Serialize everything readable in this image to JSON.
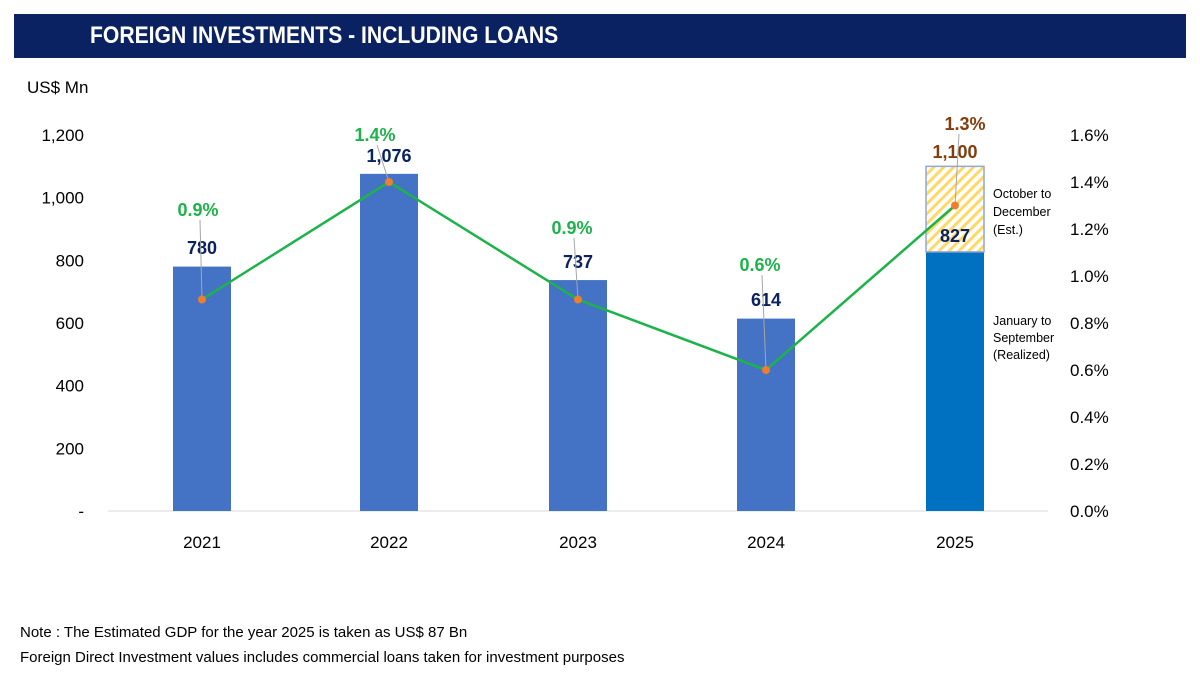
{
  "title": "FOREIGN INVESTMENTS - INCLUDING LOANS",
  "notes": [
    "Note : The Estimated GDP for the year 2025 is taken as US$ 87  Bn",
    "Foreign Direct Investment values includes commercial loans taken for investment purposes"
  ],
  "chart_data": {
    "type": "bar",
    "categories": [
      "2021",
      "2022",
      "2023",
      "2024",
      "2025"
    ],
    "ylabel": "US$ Mn",
    "ylim": [
      0,
      1200
    ],
    "y_ticks": [
      "-",
      "200",
      "400",
      "600",
      "800",
      "1,000",
      "1,200"
    ],
    "y2lim": [
      0,
      1.6
    ],
    "y2_ticks": [
      "0.0%",
      "0.2%",
      "0.4%",
      "0.6%",
      "0.8%",
      "1.0%",
      "1.2%",
      "1.4%",
      "1.6%"
    ],
    "grid": false,
    "series": [
      {
        "type": "bar",
        "values": [
          780,
          1076,
          737,
          614,
          827
        ],
        "labels": [
          "780",
          "1,076",
          "737",
          "614",
          "827"
        ]
      },
      {
        "type": "bar-stacked-estimate",
        "values": [
          null,
          null,
          null,
          null,
          273
        ],
        "total_label": "1,100",
        "total": 1100
      },
      {
        "type": "line",
        "axis": "right",
        "values": [
          0.9,
          1.4,
          0.9,
          0.6,
          1.3
        ],
        "labels": [
          "0.9%",
          "1.4%",
          "0.9%",
          "0.6%",
          "1.3%"
        ]
      }
    ],
    "annotations": {
      "estimate": [
        "October to",
        "December",
        "(Est.)"
      ],
      "realized": [
        "January to",
        "September",
        "(Realized)"
      ]
    },
    "colors": {
      "bar": "#4472c4",
      "bar_2025": "#0070c0",
      "estimate_hatch": "#ffd966",
      "line": "#1db34a",
      "marker": "#ed7d31",
      "pct_label": "#1db34a",
      "pct_label_2025": "#843c0c",
      "value_label": "#0b2262"
    }
  }
}
